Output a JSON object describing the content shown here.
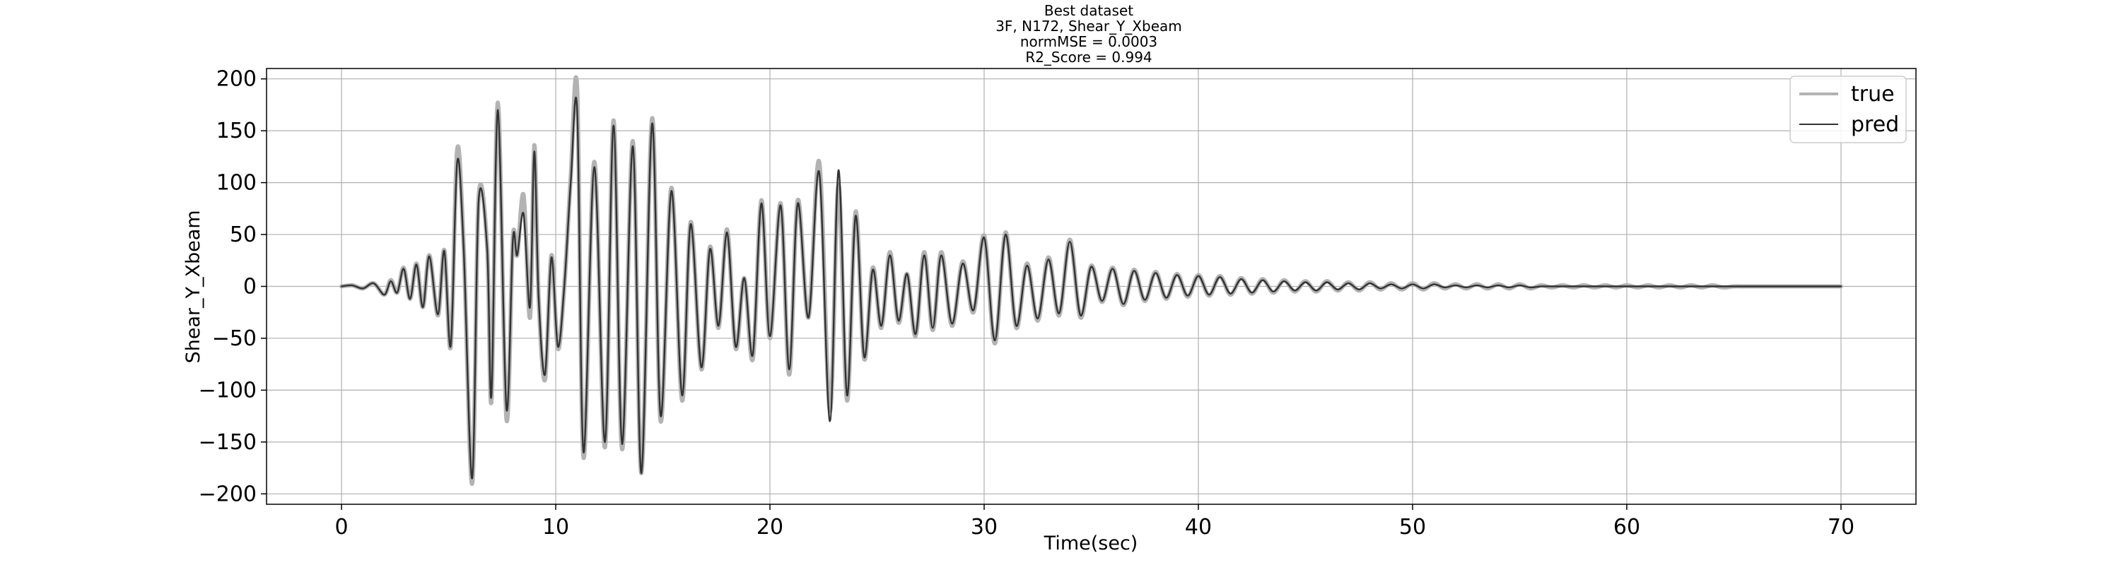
{
  "chart_data": {
    "type": "line",
    "title_lines": [
      "Best dataset",
      "3F, N172, Shear_Y_Xbeam",
      "normMSE = 0.0003",
      "R2_Score = 0.994"
    ],
    "xlabel": "Time(sec)",
    "ylabel": "Shear_Y_Xbeam",
    "xlim": [
      -3.5,
      73.5
    ],
    "ylim": [
      -210,
      210
    ],
    "xticks": [
      0,
      10,
      20,
      30,
      40,
      50,
      60,
      70
    ],
    "yticks": [
      -200,
      -150,
      -100,
      -50,
      0,
      50,
      100,
      150,
      200
    ],
    "grid": true,
    "legend_position": "top-right",
    "series": [
      {
        "name": "true",
        "color": "#b3b3b3",
        "x": [
          0,
          0.5,
          1.0,
          1.5,
          2.0,
          2.3,
          2.6,
          2.9,
          3.2,
          3.5,
          3.8,
          4.1,
          4.5,
          4.8,
          5.1,
          5.4,
          5.7,
          6.1,
          6.4,
          6.8,
          7.0,
          7.3,
          7.7,
          8.0,
          8.2,
          8.5,
          8.8,
          9.0,
          9.2,
          9.5,
          9.8,
          10.1,
          10.4,
          10.7,
          11.0,
          11.3,
          11.8,
          12.3,
          12.7,
          13.1,
          13.6,
          14.0,
          14.5,
          14.9,
          15.4,
          15.9,
          16.3,
          16.8,
          17.2,
          17.6,
          18.0,
          18.4,
          18.8,
          19.2,
          19.6,
          20.0,
          20.5,
          20.9,
          21.3,
          21.8,
          22.3,
          22.8,
          23.2,
          23.6,
          24.0,
          24.4,
          24.8,
          25.2,
          25.6,
          26.0,
          26.4,
          26.8,
          27.2,
          27.6,
          28.0,
          28.5,
          29.0,
          29.5,
          30.0,
          30.5,
          31.0,
          31.5,
          32.0,
          32.5,
          33.0,
          33.5,
          34.0,
          34.5,
          35.0,
          35.5,
          36.0,
          36.5,
          37.0,
          37.5,
          38.0,
          38.5,
          39.0,
          39.5,
          40.0,
          40.5,
          41.0,
          41.5,
          42.0,
          42.5,
          43.0,
          43.5,
          44.0,
          44.5,
          45.0,
          45.5,
          46.0,
          46.5,
          47.0,
          47.5,
          48.0,
          48.5,
          49.0,
          49.5,
          50.0,
          50.5,
          51.0,
          51.5,
          52.0,
          52.5,
          53.0,
          53.5,
          54.0,
          54.5,
          55.0,
          55.5,
          56.0,
          56.5,
          57.0,
          57.5,
          58.0,
          58.5,
          59.0,
          59.5,
          60.0,
          60.5,
          61.0,
          61.5,
          62.0,
          62.5,
          63.0,
          63.5,
          64.0,
          64.5,
          65.0,
          65.5,
          66.0,
          66.5,
          67.0,
          67.5,
          68.0,
          68.5,
          69.0,
          69.5,
          70.0
        ],
        "y": [
          0,
          1,
          -2,
          3,
          -8,
          6,
          -6,
          18,
          -12,
          22,
          -20,
          30,
          -28,
          35,
          -58,
          132,
          40,
          -190,
          85,
          38,
          -110,
          177,
          -128,
          47,
          30,
          88,
          -30,
          136,
          -10,
          -90,
          30,
          -60,
          0,
          105,
          190,
          -165,
          120,
          -155,
          160,
          -157,
          140,
          -180,
          162,
          -130,
          95,
          -110,
          62,
          -80,
          38,
          -40,
          55,
          -60,
          8,
          -70,
          83,
          -50,
          80,
          -85,
          83,
          -30,
          120,
          -120,
          98,
          -110,
          72,
          -70,
          18,
          -40,
          33,
          -35,
          12,
          -48,
          33,
          -42,
          33,
          -38,
          24,
          -25,
          49,
          -55,
          52,
          -40,
          22,
          -33,
          28,
          -28,
          45,
          -30,
          20,
          -15,
          18,
          -18,
          16,
          -14,
          14,
          -12,
          12,
          -10,
          11,
          -9,
          10,
          -8,
          8,
          -7,
          7,
          -6,
          6,
          -5,
          5,
          -5,
          5,
          -4,
          4,
          -4,
          4,
          -3,
          3,
          -3,
          3,
          -3,
          3,
          -2,
          2,
          -2,
          2,
          -2,
          2,
          -2,
          2,
          -2,
          1,
          -1,
          1,
          -1,
          1,
          -1,
          1,
          -1,
          1,
          -1,
          1,
          -1,
          1,
          -1,
          1,
          -1,
          1,
          -1,
          0,
          0,
          0,
          0,
          0,
          0,
          0,
          0,
          0,
          0,
          0
        ]
      },
      {
        "name": "pred",
        "color": "#333333",
        "x": [
          0,
          0.5,
          1.0,
          1.5,
          2.0,
          2.3,
          2.6,
          2.9,
          3.2,
          3.5,
          3.8,
          4.1,
          4.5,
          4.8,
          5.1,
          5.4,
          5.7,
          6.1,
          6.4,
          6.8,
          7.0,
          7.3,
          7.7,
          8.0,
          8.2,
          8.5,
          8.8,
          9.0,
          9.2,
          9.5,
          9.8,
          10.1,
          10.4,
          10.7,
          11.0,
          11.3,
          11.8,
          12.3,
          12.7,
          13.1,
          13.6,
          14.0,
          14.5,
          14.9,
          15.4,
          15.9,
          16.3,
          16.8,
          17.2,
          17.6,
          18.0,
          18.4,
          18.8,
          19.2,
          19.6,
          20.0,
          20.5,
          20.9,
          21.3,
          21.8,
          22.3,
          22.8,
          23.2,
          23.6,
          24.0,
          24.4,
          24.8,
          25.2,
          25.6,
          26.0,
          26.4,
          26.8,
          27.2,
          27.6,
          28.0,
          28.5,
          29.0,
          29.5,
          30.0,
          30.5,
          31.0,
          31.5,
          32.0,
          32.5,
          33.0,
          33.5,
          34.0,
          34.5,
          35.0,
          35.5,
          36.0,
          36.5,
          37.0,
          37.5,
          38.0,
          38.5,
          39.0,
          39.5,
          40.0,
          40.5,
          41.0,
          41.5,
          42.0,
          42.5,
          43.0,
          43.5,
          44.0,
          44.5,
          45.0,
          45.5,
          46.0,
          46.5,
          47.0,
          47.5,
          48.0,
          48.5,
          49.0,
          49.5,
          50.0,
          50.5,
          51.0,
          51.5,
          52.0,
          52.5,
          53.0,
          53.5,
          54.0,
          54.5,
          55.0,
          55.5,
          56.0,
          56.5,
          57.0,
          57.5,
          58.0,
          58.5,
          59.0,
          59.5,
          60.0,
          60.5,
          61.0,
          61.5,
          62.0,
          62.5,
          63.0,
          63.5,
          64.0,
          64.5,
          65.0,
          65.5,
          66.0,
          66.5,
          67.0,
          67.5,
          68.0,
          68.5,
          69.0,
          69.5,
          70.0
        ],
        "y": [
          0,
          1,
          -2,
          3,
          -8,
          5,
          -6,
          17,
          -12,
          21,
          -20,
          29,
          -27,
          34,
          -57,
          120,
          38,
          -185,
          82,
          36,
          -105,
          170,
          -118,
          45,
          30,
          70,
          -20,
          130,
          -10,
          -85,
          28,
          -58,
          0,
          100,
          170,
          -160,
          115,
          -150,
          155,
          -152,
          135,
          -180,
          157,
          -125,
          92,
          -105,
          60,
          -78,
          36,
          -38,
          52,
          -58,
          8,
          -66,
          80,
          -48,
          78,
          -80,
          80,
          -30,
          110,
          -130,
          112,
          -105,
          68,
          -68,
          16,
          -38,
          30,
          -33,
          12,
          -46,
          30,
          -40,
          30,
          -36,
          22,
          -23,
          47,
          -52,
          50,
          -38,
          20,
          -31,
          26,
          -26,
          43,
          -28,
          19,
          -14,
          17,
          -17,
          15,
          -13,
          13,
          -11,
          11,
          -9,
          10,
          -8,
          9,
          -7,
          7,
          -6,
          6,
          -5,
          5,
          -4,
          4,
          -4,
          4,
          -3,
          3,
          -3,
          3,
          -2,
          2,
          -2,
          2,
          -2,
          2,
          -1,
          1,
          -1,
          1,
          -1,
          1,
          -1,
          1,
          -1,
          0,
          0,
          0,
          0,
          0,
          0,
          0,
          0,
          0,
          0,
          0,
          0,
          0,
          0,
          0,
          0,
          0,
          0,
          0,
          0,
          0,
          0,
          0,
          0,
          0,
          0,
          0,
          0,
          0
        ]
      }
    ]
  }
}
